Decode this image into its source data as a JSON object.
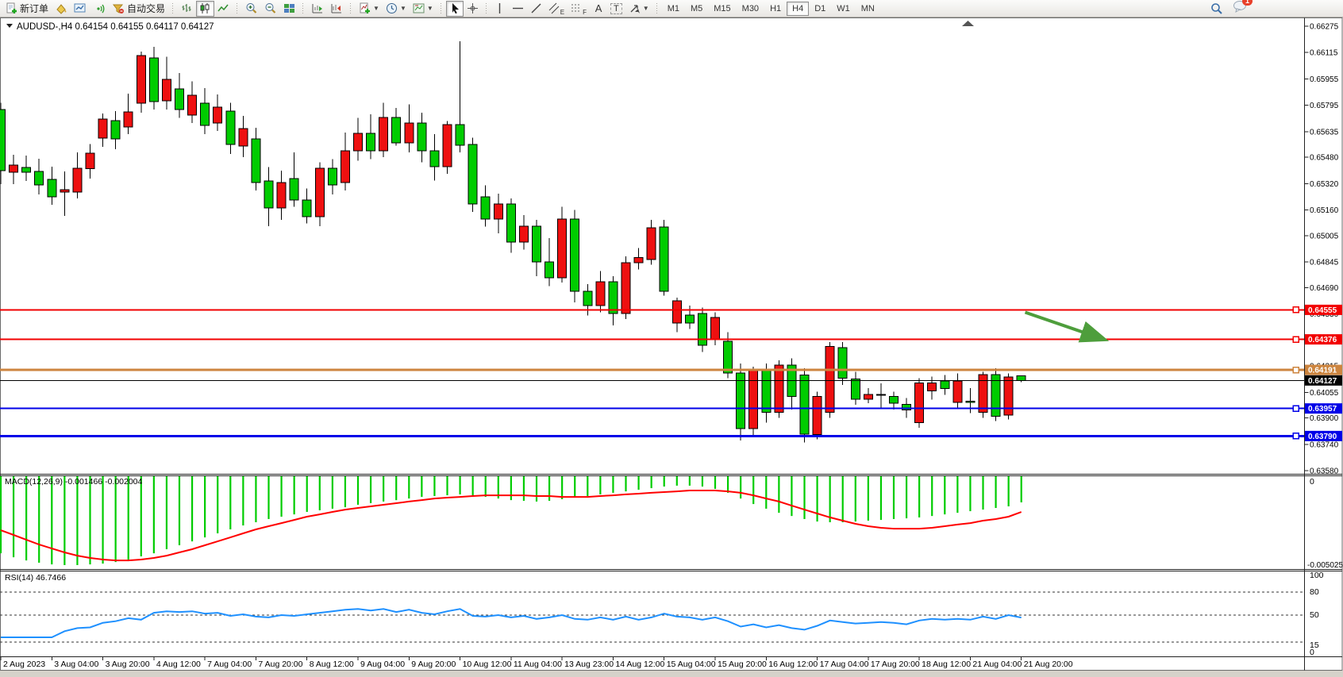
{
  "toolbar": {
    "new_order_label": "新订单",
    "auto_trading_label": "自动交易",
    "timeframes": [
      "M1",
      "M5",
      "M15",
      "M30",
      "H1",
      "H4",
      "D1",
      "W1",
      "MN"
    ],
    "active_timeframe": "H4",
    "drawing_labels": {
      "channel": "E",
      "fibo": "F",
      "text": "A",
      "label": "T"
    },
    "notification_badge": "1"
  },
  "chart": {
    "title": "AUDUSD-,H4",
    "ohlc": {
      "open": "0.64154",
      "high": "0.64155",
      "low": "0.64117",
      "close": "0.64127"
    },
    "price_ticks": [
      "0.66275",
      "0.66115",
      "0.65955",
      "0.65795",
      "0.65635",
      "0.65480",
      "0.65320",
      "0.65160",
      "0.65005",
      "0.64845",
      "0.64690",
      "0.64530",
      "0.64370",
      "0.64215",
      "0.64055",
      "0.63900",
      "0.63740",
      "0.63580"
    ],
    "time_labels": [
      "2 Aug 2023",
      "3 Aug 04:00",
      "3 Aug 20:00",
      "4 Aug 12:00",
      "7 Aug 04:00",
      "7 Aug 20:00",
      "8 Aug 12:00",
      "9 Aug 04:00",
      "9 Aug 20:00",
      "10 Aug 12:00",
      "11 Aug 04:00",
      "13 Aug 23:00",
      "14 Aug 12:00",
      "15 Aug 04:00",
      "15 Aug 20:00",
      "16 Aug 12:00",
      "17 Aug 04:00",
      "17 Aug 20:00",
      "18 Aug 12:00",
      "21 Aug 04:00",
      "21 Aug 20:00"
    ],
    "hlines": [
      {
        "label": "0.64555",
        "value": 0.64555,
        "color": "#f20000",
        "width": 2
      },
      {
        "label": "0.64376",
        "value": 0.64376,
        "color": "#f20000",
        "width": 2
      },
      {
        "label": "0.64191",
        "value": 0.64191,
        "color": "#cd853f",
        "width": 3
      },
      {
        "label": "0.64127",
        "value": 0.64127,
        "color": "#000000",
        "width": 1
      },
      {
        "label": "0.63957",
        "value": 0.63957,
        "color": "#0000e8",
        "width": 2
      },
      {
        "label": "0.63790",
        "value": 0.6379,
        "color": "#0000e8",
        "width": 3
      }
    ],
    "arrow": {
      "x1_bar": 80.3,
      "price1": 0.6454,
      "x2_bar": 86.4,
      "price2": 0.64378,
      "color": "#4e9e3c"
    }
  },
  "chart_data": {
    "type": "candlestick",
    "symbol": "AUDUSD",
    "period": "H4",
    "ylim": [
      0.6358,
      0.66275
    ],
    "up_color": "#ee1010",
    "down_color": "#00cc00",
    "candles": [
      [
        0.6577,
        0.6581,
        0.65318,
        0.654
      ],
      [
        0.6539,
        0.65496,
        0.65318,
        0.65433
      ],
      [
        0.65419,
        0.65491,
        0.65337,
        0.6539
      ],
      [
        0.65395,
        0.65472,
        0.65255,
        0.65313
      ],
      [
        0.65347,
        0.65424,
        0.65193,
        0.65241
      ],
      [
        0.6527,
        0.65395,
        0.65125,
        0.65284
      ],
      [
        0.6527,
        0.6551,
        0.65231,
        0.65414
      ],
      [
        0.6541,
        0.6556,
        0.65352,
        0.65506
      ],
      [
        0.65597,
        0.65746,
        0.65544,
        0.65712
      ],
      [
        0.65703,
        0.6576,
        0.6553,
        0.65592
      ],
      [
        0.65664,
        0.65866,
        0.6562,
        0.65756
      ],
      [
        0.65808,
        0.66121,
        0.6575,
        0.66097
      ],
      [
        0.66083,
        0.6615,
        0.6577,
        0.65818
      ],
      [
        0.65823,
        0.6609,
        0.6577,
        0.65953
      ],
      [
        0.65895,
        0.6599,
        0.6572,
        0.6577
      ],
      [
        0.65736,
        0.6594,
        0.65688,
        0.65857
      ],
      [
        0.65808,
        0.659,
        0.6562,
        0.65674
      ],
      [
        0.65688,
        0.6586,
        0.6564,
        0.65784
      ],
      [
        0.6576,
        0.6581,
        0.655,
        0.65558
      ],
      [
        0.65549,
        0.6573,
        0.6548,
        0.65654
      ],
      [
        0.65592,
        0.6566,
        0.6528,
        0.65327
      ],
      [
        0.65337,
        0.6542,
        0.65063,
        0.65174
      ],
      [
        0.65174,
        0.654,
        0.651,
        0.65327
      ],
      [
        0.65352,
        0.6551,
        0.6518,
        0.65222
      ],
      [
        0.65222,
        0.6529,
        0.6508,
        0.6512
      ],
      [
        0.6512,
        0.6545,
        0.65063,
        0.65414
      ],
      [
        0.65414,
        0.6547,
        0.65255,
        0.65313
      ],
      [
        0.65327,
        0.6563,
        0.6528,
        0.6552
      ],
      [
        0.6552,
        0.6572,
        0.6546,
        0.65626
      ],
      [
        0.65626,
        0.6574,
        0.6547,
        0.6552
      ],
      [
        0.6552,
        0.6581,
        0.6548,
        0.65722
      ],
      [
        0.65722,
        0.6578,
        0.6555,
        0.65568
      ],
      [
        0.65568,
        0.658,
        0.6551,
        0.65688
      ],
      [
        0.65688,
        0.6575,
        0.6545,
        0.6552
      ],
      [
        0.6552,
        0.6562,
        0.6534,
        0.65424
      ],
      [
        0.65424,
        0.657,
        0.6538,
        0.65678
      ],
      [
        0.65678,
        0.66184,
        0.6551,
        0.65554
      ],
      [
        0.65558,
        0.656,
        0.6515,
        0.65198
      ],
      [
        0.6524,
        0.6531,
        0.6506,
        0.65106
      ],
      [
        0.65106,
        0.6526,
        0.6502,
        0.65198
      ],
      [
        0.65198,
        0.6523,
        0.649,
        0.64967
      ],
      [
        0.64967,
        0.6513,
        0.6492,
        0.65063
      ],
      [
        0.65063,
        0.651,
        0.6476,
        0.64846
      ],
      [
        0.64846,
        0.6499,
        0.647,
        0.6475
      ],
      [
        0.6475,
        0.6518,
        0.6472,
        0.65106
      ],
      [
        0.65106,
        0.6516,
        0.646,
        0.64668
      ],
      [
        0.64668,
        0.6471,
        0.6452,
        0.64582
      ],
      [
        0.64582,
        0.6479,
        0.6454,
        0.64726
      ],
      [
        0.64726,
        0.6476,
        0.6446,
        0.64534
      ],
      [
        0.64534,
        0.6488,
        0.645,
        0.64842
      ],
      [
        0.64842,
        0.6493,
        0.648,
        0.64871
      ],
      [
        0.64861,
        0.651,
        0.6483,
        0.65053
      ],
      [
        0.65058,
        0.651,
        0.6464,
        0.64668
      ],
      [
        0.64476,
        0.6463,
        0.6442,
        0.6461
      ],
      [
        0.64524,
        0.6458,
        0.6444,
        0.64476
      ],
      [
        0.64534,
        0.6457,
        0.643,
        0.64341
      ],
      [
        0.64375,
        0.6454,
        0.6434,
        0.6451
      ],
      [
        0.64365,
        0.6442,
        0.6414,
        0.64173
      ],
      [
        0.64173,
        0.6423,
        0.63764,
        0.63836
      ],
      [
        0.63836,
        0.6421,
        0.6379,
        0.64197
      ],
      [
        0.64197,
        0.6423,
        0.6387,
        0.63933
      ],
      [
        0.63933,
        0.6425,
        0.639,
        0.64221
      ],
      [
        0.64221,
        0.6426,
        0.6395,
        0.64029
      ],
      [
        0.64159,
        0.642,
        0.6375,
        0.63802
      ],
      [
        0.63798,
        0.6406,
        0.6377,
        0.64029
      ],
      [
        0.63933,
        0.6436,
        0.639,
        0.64332
      ],
      [
        0.64327,
        0.6436,
        0.641,
        0.6414
      ],
      [
        0.64135,
        0.6418,
        0.6398,
        0.64014
      ],
      [
        0.64014,
        0.6408,
        0.6399,
        0.64043
      ],
      [
        0.64038,
        0.6411,
        0.6396,
        0.64043
      ],
      [
        0.64029,
        0.6406,
        0.6395,
        0.6399
      ],
      [
        0.63981,
        0.6402,
        0.639,
        0.63947
      ],
      [
        0.6387,
        0.6414,
        0.6384,
        0.64111
      ],
      [
        0.64063,
        0.6415,
        0.6401,
        0.64111
      ],
      [
        0.64125,
        0.6416,
        0.6404,
        0.64077
      ],
      [
        0.63995,
        0.6417,
        0.6396,
        0.64125
      ],
      [
        0.64,
        0.6408,
        0.6393,
        0.63995
      ],
      [
        0.63933,
        0.6418,
        0.639,
        0.64163
      ],
      [
        0.64163,
        0.642,
        0.6388,
        0.63909
      ],
      [
        0.63918,
        0.6417,
        0.6389,
        0.64149
      ],
      [
        0.64154,
        0.64155,
        0.64117,
        0.64127
      ]
    ],
    "macd": {
      "label": "MACD(12,26,9)",
      "value_text": "-0.001466",
      "signal_text": "-0.002004",
      "scale_labels": [
        "0",
        "-0.005025"
      ],
      "scale_min": -0.005025,
      "hist_color": "#00cc00",
      "signal_color": "#ff0000",
      "values": [
        -0.00432,
        -0.00454,
        -0.00472,
        -0.00485,
        -0.00494,
        -0.00498,
        -0.00498,
        -0.00494,
        -0.0049,
        -0.00481,
        -0.00467,
        -0.00449,
        -0.00432,
        -0.00409,
        -0.00387,
        -0.00365,
        -0.00343,
        -0.0032,
        -0.00298,
        -0.00276,
        -0.00258,
        -0.0024,
        -0.00227,
        -0.00214,
        -0.002,
        -0.00191,
        -0.00182,
        -0.00174,
        -0.0016,
        -0.00151,
        -0.00142,
        -0.00134,
        -0.00125,
        -0.00116,
        -0.00111,
        -0.00107,
        -0.00102,
        -0.00107,
        -0.00116,
        -0.00125,
        -0.00134,
        -0.00138,
        -0.00142,
        -0.00138,
        -0.00129,
        -0.0012,
        -0.00111,
        -0.00102,
        -0.00093,
        -0.00085,
        -0.00076,
        -0.00067,
        -0.00058,
        -0.00053,
        -0.00053,
        -0.00058,
        -0.00071,
        -0.00093,
        -0.00125,
        -0.00156,
        -0.00182,
        -0.00205,
        -0.00223,
        -0.0024,
        -0.00254,
        -0.00258,
        -0.00258,
        -0.00254,
        -0.00249,
        -0.00245,
        -0.0024,
        -0.00236,
        -0.00231,
        -0.00223,
        -0.00214,
        -0.00205,
        -0.00196,
        -0.00187,
        -0.00178,
        -0.00169,
        -0.001466
      ],
      "signal": [
        -0.00303,
        -0.00329,
        -0.00356,
        -0.00383,
        -0.00405,
        -0.00427,
        -0.00445,
        -0.00458,
        -0.00467,
        -0.00472,
        -0.00472,
        -0.00467,
        -0.00458,
        -0.00445,
        -0.00427,
        -0.00409,
        -0.00387,
        -0.00365,
        -0.00343,
        -0.0032,
        -0.00298,
        -0.0028,
        -0.00263,
        -0.00245,
        -0.00227,
        -0.00214,
        -0.002,
        -0.00187,
        -0.00178,
        -0.00169,
        -0.0016,
        -0.00151,
        -0.00142,
        -0.00134,
        -0.00125,
        -0.0012,
        -0.00116,
        -0.00111,
        -0.00107,
        -0.00107,
        -0.00107,
        -0.00107,
        -0.00111,
        -0.00111,
        -0.00116,
        -0.00116,
        -0.00116,
        -0.00111,
        -0.00107,
        -0.00102,
        -0.00098,
        -0.00093,
        -0.00089,
        -0.00085,
        -0.0008,
        -0.0008,
        -0.0008,
        -0.00085,
        -0.00093,
        -0.00107,
        -0.00125,
        -0.00142,
        -0.00165,
        -0.00187,
        -0.00209,
        -0.00231,
        -0.00249,
        -0.00267,
        -0.0028,
        -0.00289,
        -0.00294,
        -0.00294,
        -0.00294,
        -0.00289,
        -0.0028,
        -0.00271,
        -0.00263,
        -0.00249,
        -0.0024,
        -0.00227,
        -0.002004
      ]
    },
    "rsi": {
      "label": "RSI(14)",
      "value_text": "46.7466",
      "scale_labels": [
        "100",
        "80",
        "50",
        "15",
        "0"
      ],
      "levels": [
        80,
        50,
        15
      ],
      "line_color": "#1e90ff",
      "values": [
        21,
        21,
        21,
        21,
        21,
        29,
        33,
        34,
        40,
        42,
        46,
        44,
        53,
        55,
        54,
        55,
        52,
        53,
        49,
        51,
        48,
        47,
        50,
        49,
        51,
        53,
        55,
        57,
        58,
        56,
        58,
        54,
        57,
        53,
        51,
        55,
        58,
        49,
        48,
        50,
        47,
        49,
        45,
        47,
        50,
        45,
        44,
        47,
        44,
        48,
        44,
        47,
        52,
        48,
        47,
        44,
        47,
        42,
        35,
        38,
        34,
        37,
        33,
        31,
        36,
        43,
        41,
        39,
        40,
        41,
        40,
        38,
        43,
        45,
        44,
        45,
        44,
        48,
        45,
        50,
        46.75
      ]
    }
  }
}
